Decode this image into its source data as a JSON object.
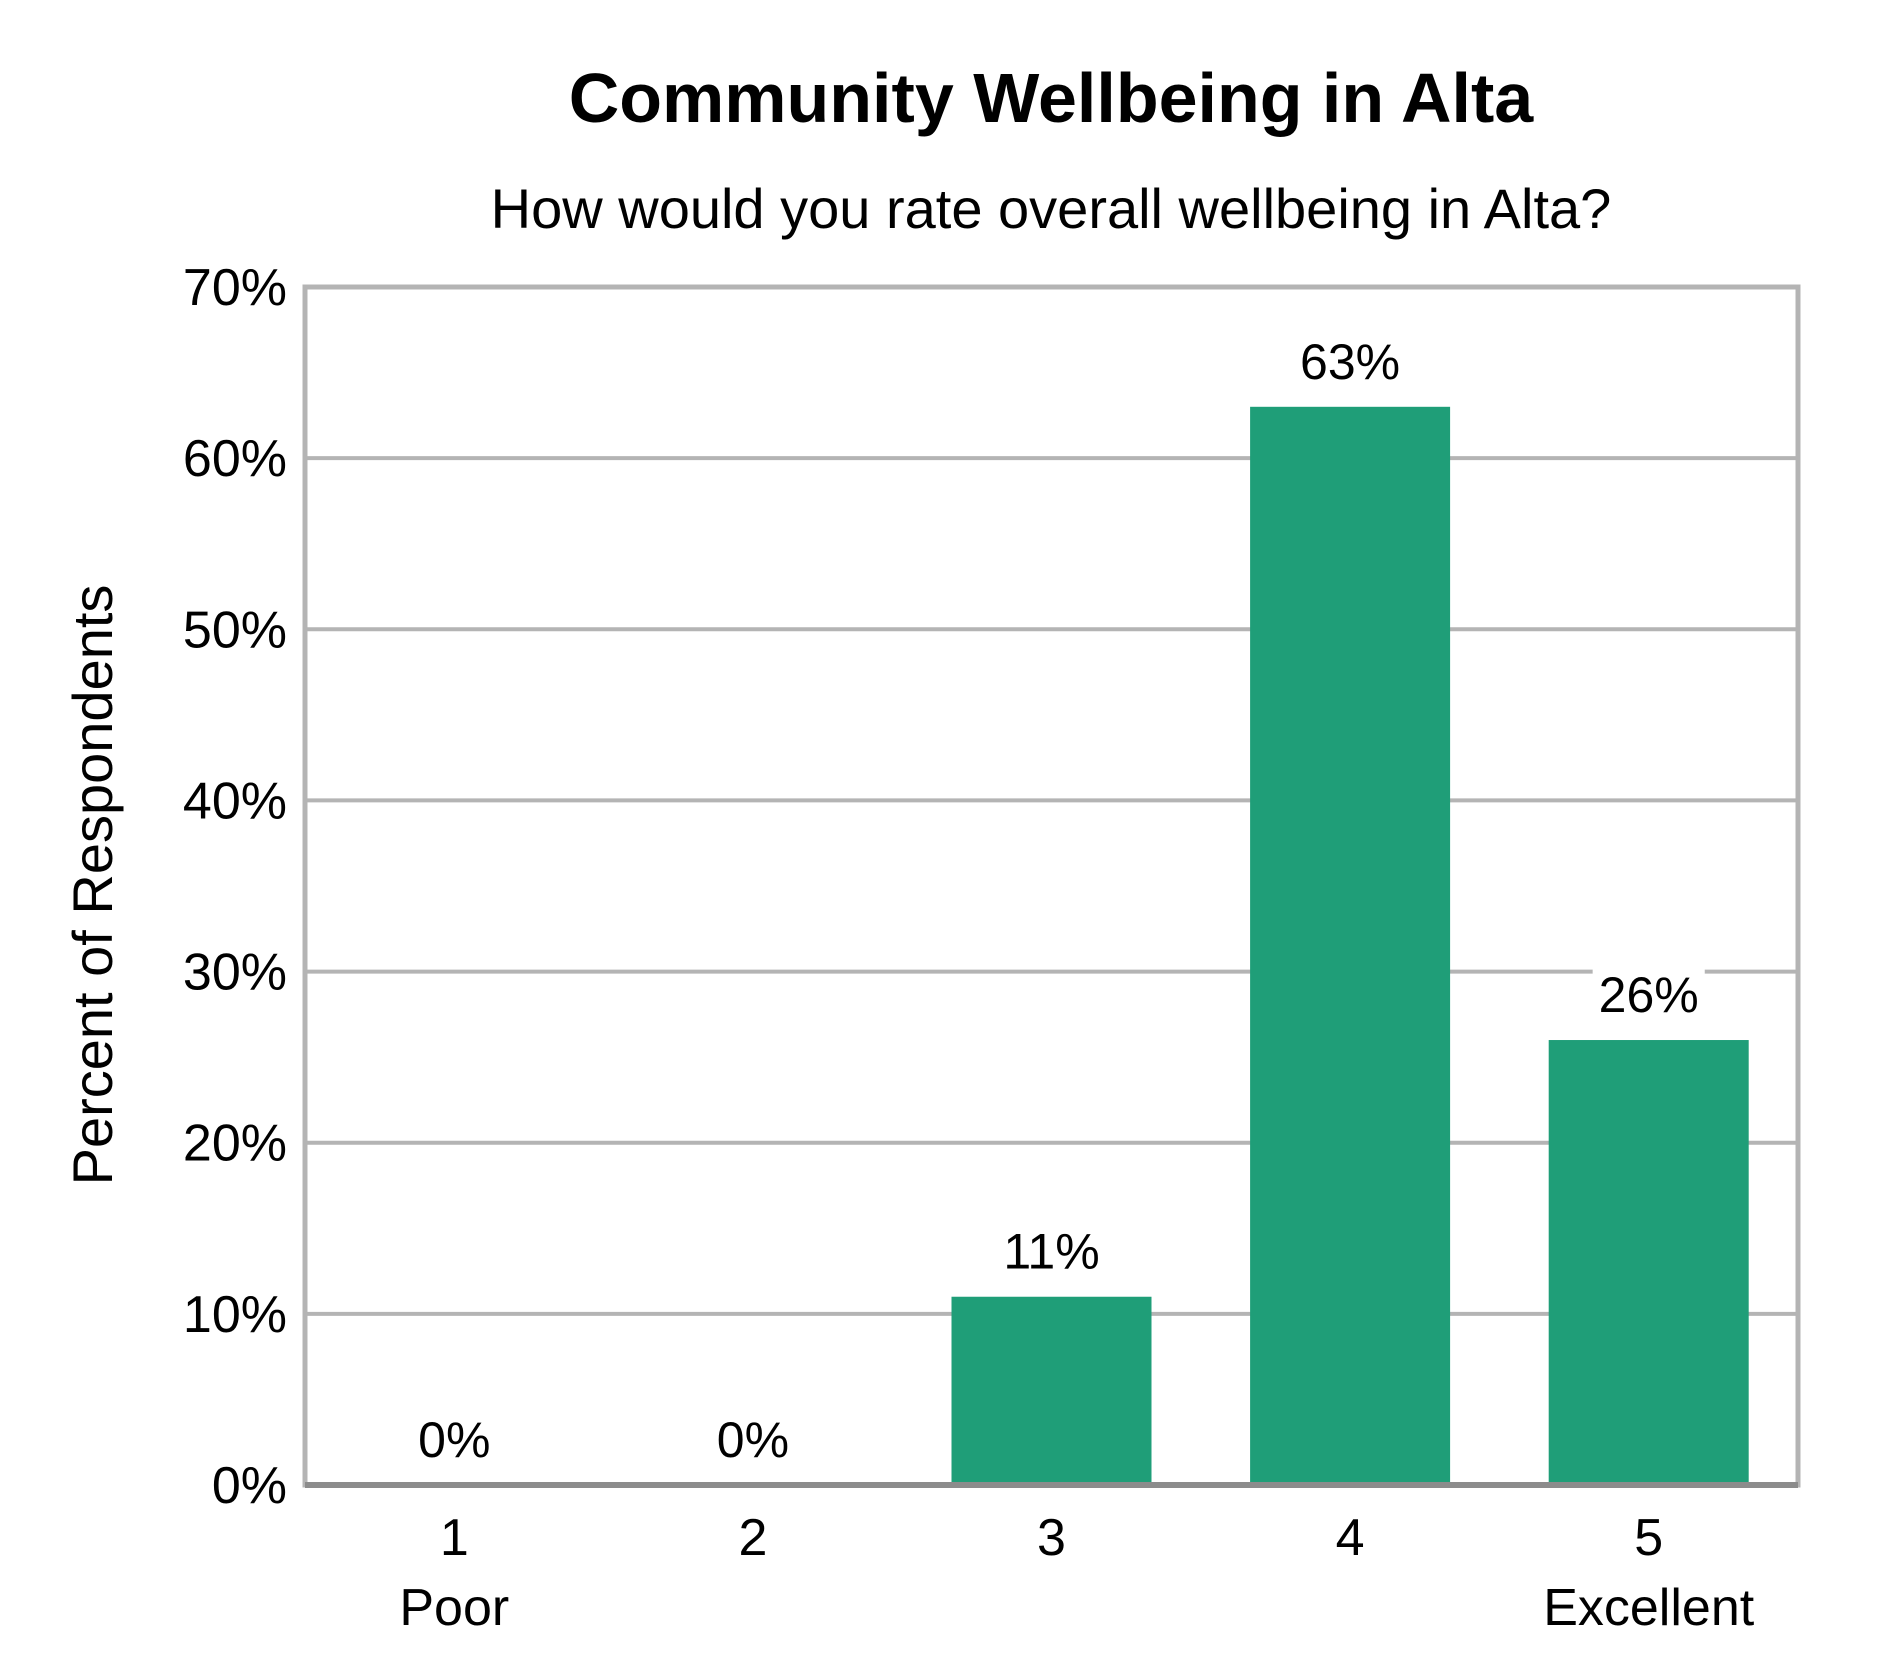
{
  "chart_data": {
    "type": "bar",
    "title": "Community Wellbeing in Alta",
    "subtitle": "How would you rate overall wellbeing in Alta?",
    "ylabel": "Percent of Respondents",
    "xlabel": "",
    "categories": [
      "1",
      "2",
      "3",
      "4",
      "5"
    ],
    "category_sublabels": [
      "Poor",
      "",
      "",
      "",
      "Excellent"
    ],
    "values": [
      0,
      0,
      11,
      63,
      26
    ],
    "data_labels": [
      "0%",
      "0%",
      "11%",
      "63%",
      "26%"
    ],
    "ylim": [
      0,
      70
    ],
    "yticks": [
      0,
      10,
      20,
      30,
      40,
      50,
      60,
      70
    ],
    "ytick_labels": [
      "0%",
      "10%",
      "20%",
      "30%",
      "40%",
      "50%",
      "60%",
      "70%"
    ],
    "grid": true,
    "bar_color": "#1f9e78",
    "grid_color": "#b4b4b4"
  }
}
